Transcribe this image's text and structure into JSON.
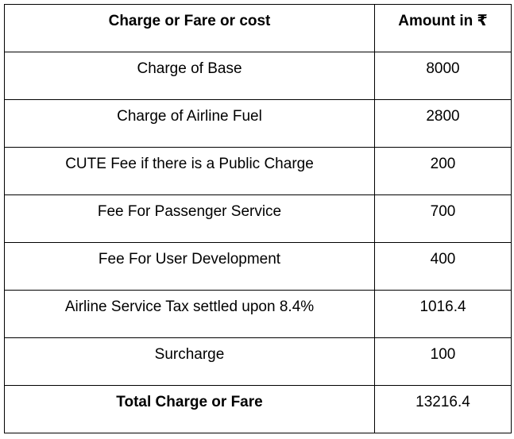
{
  "table": {
    "headers": [
      "Charge or Fare or cost",
      "Amount in ₹"
    ],
    "rows": [
      {
        "charge": "Charge of Base",
        "amount": "8000"
      },
      {
        "charge": "Charge of Airline Fuel",
        "amount": "2800"
      },
      {
        "charge": "CUTE Fee if there is a Public Charge",
        "amount": "200"
      },
      {
        "charge": "Fee For Passenger Service",
        "amount": "700"
      },
      {
        "charge": "Fee For User Development",
        "amount": "400"
      },
      {
        "charge": "Airline Service Tax settled upon 8.4%",
        "amount": "1016.4"
      },
      {
        "charge": "Surcharge",
        "amount": "100"
      }
    ],
    "total": {
      "charge": "Total Charge or Fare",
      "amount": "13216.4"
    }
  }
}
